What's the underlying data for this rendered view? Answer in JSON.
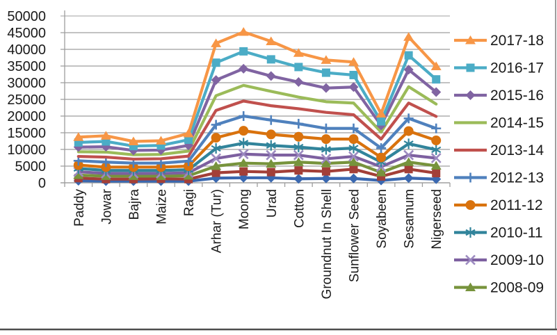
{
  "chart_data": {
    "type": "line",
    "stacked_cumulative": true,
    "title": "",
    "xlabel": "",
    "ylabel": "",
    "grid": true,
    "legend_position": "right",
    "y_axis": {
      "min": 0,
      "max": 50000,
      "step": 5000,
      "tick_labels": [
        "0",
        "5000",
        "10000",
        "15000",
        "20000",
        "25000",
        "30000",
        "35000",
        "40000",
        "45000",
        "50000"
      ]
    },
    "categories": [
      "Paddy",
      "Jowar",
      "Bajra",
      "Maize",
      "Ragi",
      "Arhar (Tur)",
      "Moong",
      "Urad",
      "Cotton",
      "Groundnut In Shell",
      "Sunflower Seed",
      "Soyabeen",
      "Sesamum",
      "Nigerseed"
    ],
    "series": [
      {
        "label": "2017-18",
        "color": "#F79646",
        "marker": "triangle",
        "in_legend": true,
        "values": [
          13700,
          14100,
          12400,
          12600,
          14800,
          41800,
          45200,
          42400,
          38900,
          36800,
          36200,
          20700,
          43700,
          34900
        ]
      },
      {
        "label": "2016-17",
        "color": "#4BACC6",
        "marker": "square",
        "in_legend": true,
        "values": [
          12100,
          12400,
          11000,
          11200,
          12900,
          36000,
          39400,
          37000,
          34700,
          33000,
          32300,
          18400,
          38200,
          31000
        ]
      },
      {
        "label": "2015-16",
        "color": "#8064A2",
        "marker": "diamond",
        "in_legend": true,
        "values": [
          10700,
          10800,
          9700,
          9800,
          11200,
          30800,
          34200,
          32000,
          30200,
          28400,
          28700,
          17200,
          33900,
          27200
        ]
      },
      {
        "label": "2014-15",
        "color": "#9BBB59",
        "marker": "none",
        "in_legend": true,
        "values": [
          9300,
          9200,
          8400,
          8500,
          9500,
          26100,
          29200,
          27400,
          25700,
          24300,
          23900,
          15200,
          28800,
          23600
        ]
      },
      {
        "label": "2013-14",
        "color": "#C0504D",
        "marker": "none",
        "in_legend": true,
        "values": [
          7900,
          7700,
          7100,
          7200,
          8000,
          21700,
          24500,
          23100,
          22200,
          21100,
          20400,
          13100,
          23900,
          19900
        ]
      },
      {
        "label": "2012-13",
        "color": "#4F81BD",
        "marker": "plus",
        "in_legend": true,
        "values": [
          6600,
          6200,
          5900,
          5900,
          6500,
          17400,
          20000,
          18800,
          17700,
          16300,
          16300,
          10400,
          19300,
          16300
        ]
      },
      {
        "label": "2011-12",
        "color": "#D9720D",
        "marker": "circle",
        "in_legend": true,
        "values": [
          5300,
          4700,
          4700,
          4700,
          5000,
          13500,
          15600,
          14500,
          13800,
          13100,
          13100,
          7600,
          15500,
          12700
        ]
      },
      {
        "label": "2010-11",
        "color": "#31849B",
        "marker": "asterisk",
        "in_legend": true,
        "values": [
          4300,
          3700,
          3700,
          3700,
          3900,
          10300,
          11900,
          11200,
          10700,
          10000,
          10400,
          6200,
          11700,
          9900
        ]
      },
      {
        "label": "2009-10",
        "color": "#7D60A0",
        "marker": "x",
        "marker_color": "#9C8AC0",
        "in_legend": true,
        "values": [
          3300,
          2800,
          2800,
          2800,
          3000,
          7300,
          8600,
          8300,
          8300,
          7200,
          7900,
          4800,
          8300,
          7400
        ]
      },
      {
        "label": "2008-09",
        "color": "#77933C",
        "marker": "triangle",
        "in_legend": true,
        "values": [
          2300,
          2000,
          2000,
          2000,
          2100,
          5000,
          5900,
          5700,
          6200,
          5800,
          6200,
          3100,
          6200,
          5100
        ]
      },
      {
        "label": "",
        "color": "#A33F38",
        "marker": "square",
        "in_legend": false,
        "values": [
          1400,
          1100,
          1100,
          1200,
          1100,
          3000,
          3400,
          3200,
          3700,
          3400,
          4100,
          1900,
          4100,
          2900
        ]
      },
      {
        "label": "",
        "color": "#3A68B0",
        "marker": "diamond",
        "in_legend": false,
        "values": [
          600,
          500,
          500,
          500,
          500,
          1400,
          1500,
          1500,
          1200,
          1300,
          1300,
          700,
          1400,
          1100
        ]
      }
    ],
    "legend_entries": [
      "2017-18",
      "2016-17",
      "2015-16",
      "2014-15",
      "2013-14",
      "2012-13",
      "2011-12",
      "2010-11",
      "2009-10",
      "2008-09"
    ]
  },
  "frame": {
    "note": "chart object border visible on right and bottom edges"
  }
}
